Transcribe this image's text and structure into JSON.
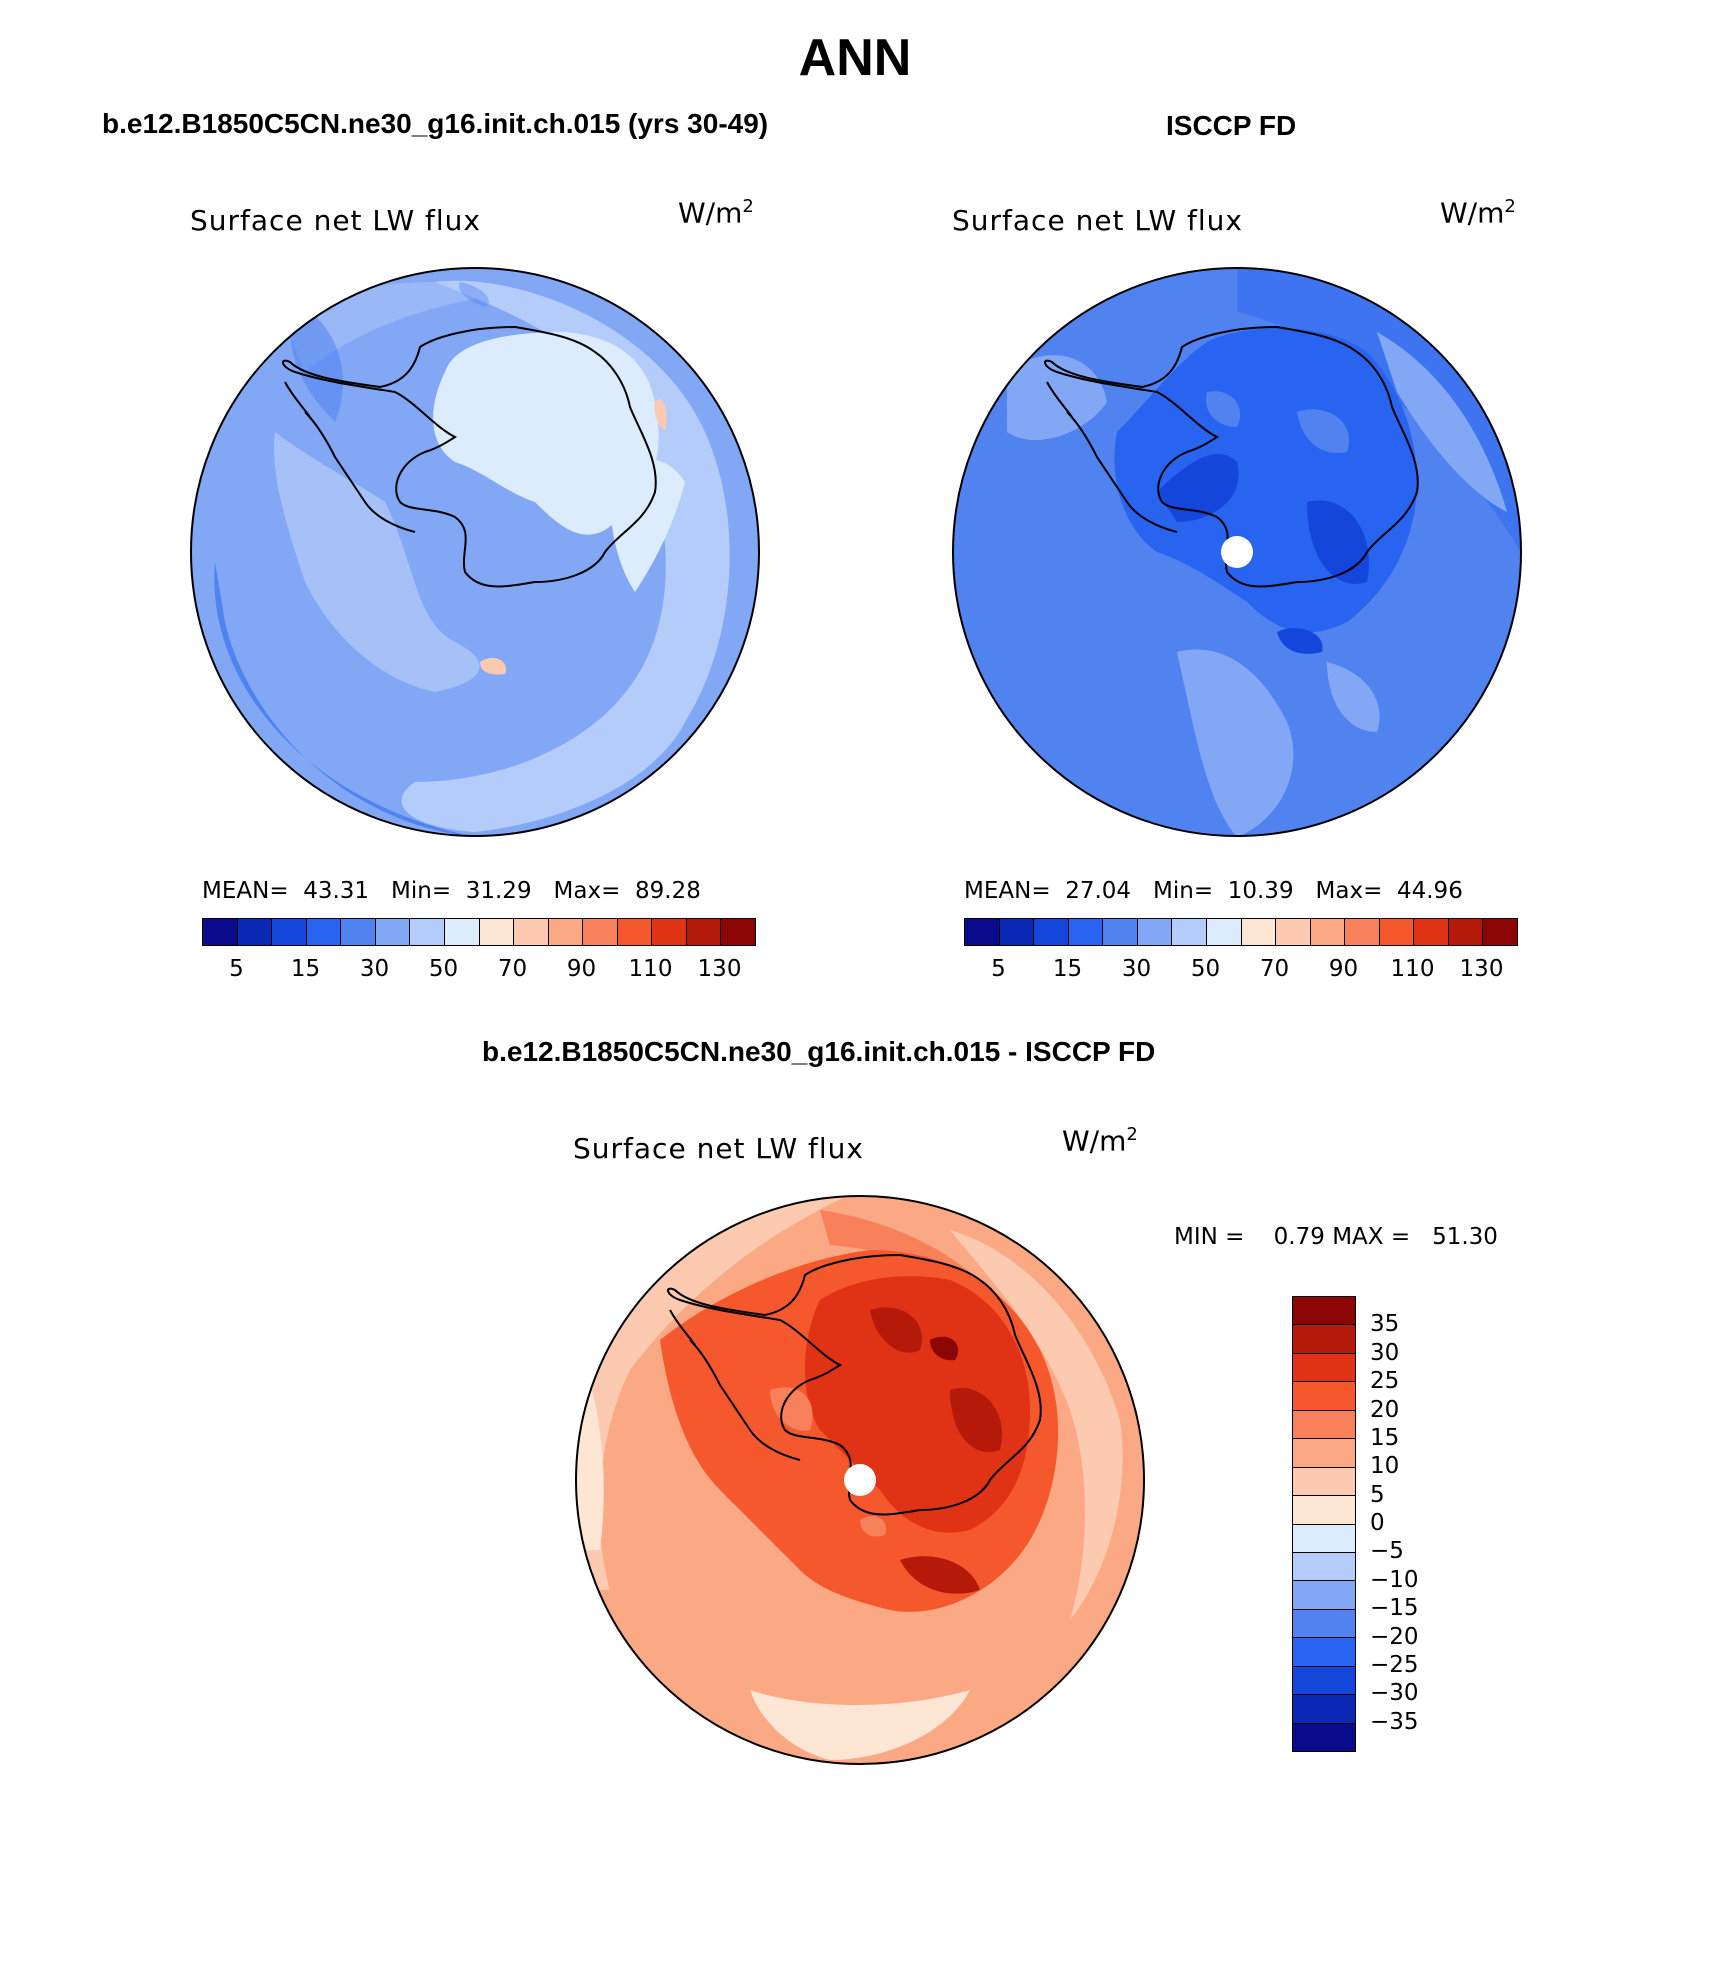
{
  "figure": {
    "title": "ANN"
  },
  "panels": {
    "model": {
      "title": "b.e12.B1850C5CN.ne30_g16.init.ch.015 (yrs 30-49)",
      "variable": "Surface net LW flux",
      "units_base": "W/m",
      "units_exp": "2",
      "stats": {
        "mean_label": "MEAN=",
        "mean": "43.31",
        "min_label": "Min=",
        "min": "31.29",
        "max_label": "Max=",
        "max": "89.28"
      }
    },
    "obs": {
      "title": "ISCCP FD",
      "variable": "Surface net LW flux",
      "units_base": "W/m",
      "units_exp": "2",
      "stats": {
        "mean_label": "MEAN=",
        "mean": "27.04",
        "min_label": "Min=",
        "min": "10.39",
        "max_label": "Max=",
        "max": "44.96"
      }
    },
    "diff": {
      "title": "b.e12.B1850C5CN.ne30_g16.init.ch.015 - ISCCP FD",
      "variable": "Surface net LW flux",
      "units_base": "W/m",
      "units_exp": "2",
      "stats": {
        "min_label": "MIN =",
        "min": "0.79",
        "max_label": "MAX =",
        "max": "51.30"
      }
    }
  },
  "colorbars": {
    "absolute": {
      "colors": [
        "#0a0a8c",
        "#0a28b4",
        "#1446dc",
        "#2864f0",
        "#5082f0",
        "#82a8f5",
        "#b4ccfa",
        "#dcecfc",
        "#fde6d4",
        "#fccab0",
        "#fba884",
        "#f8805a",
        "#f5582d",
        "#e03214",
        "#b4190a",
        "#8c0505"
      ],
      "tick_labels": [
        "5",
        "15",
        "30",
        "50",
        "70",
        "90",
        "110",
        "130"
      ]
    },
    "difference": {
      "colors": [
        "#8c0505",
        "#b4190a",
        "#e03214",
        "#f5582d",
        "#f8805a",
        "#fba884",
        "#fccab0",
        "#fde6d4",
        "#dcecfc",
        "#b4ccfa",
        "#82a8f5",
        "#5082f0",
        "#2864f0",
        "#1446dc",
        "#0a28b4",
        "#0a0a8c"
      ],
      "tick_labels": [
        "35",
        "30",
        "25",
        "20",
        "15",
        "10",
        "5",
        "0",
        "−5",
        "−10",
        "−15",
        "−20",
        "−25",
        "−30",
        "−35"
      ]
    }
  }
}
